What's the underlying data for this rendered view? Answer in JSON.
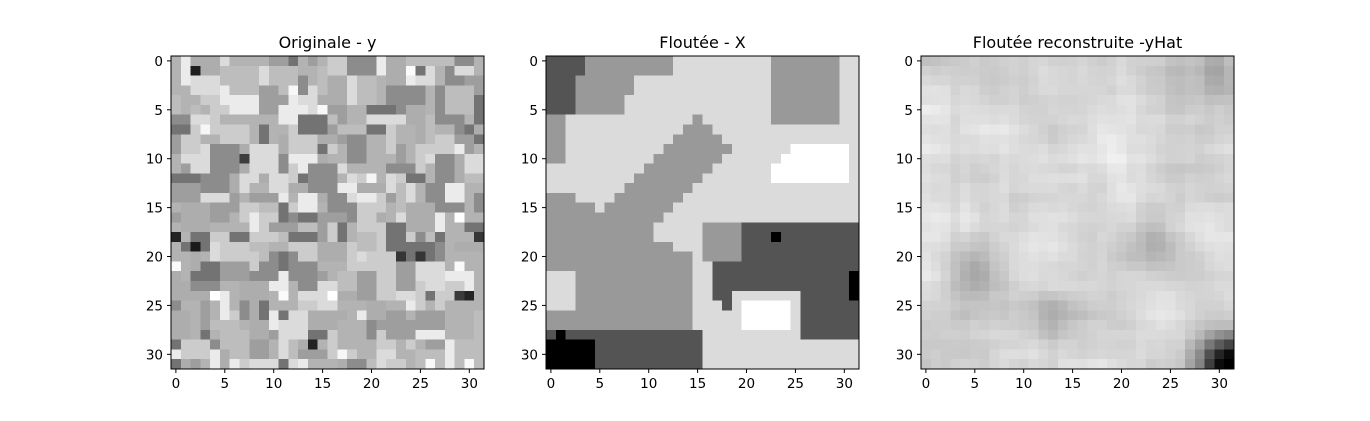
{
  "chart_data": [
    {
      "type": "heatmap",
      "title": "Originale - y",
      "colormap": "gray",
      "grid": false,
      "image_size": [
        32,
        32
      ],
      "xlim": [
        -0.5,
        31.5
      ],
      "ylim": [
        31.5,
        -0.5
      ],
      "xticks": [
        0,
        5,
        10,
        15,
        20,
        25,
        30
      ],
      "yticks": [
        0,
        5,
        10,
        15,
        20,
        25,
        30
      ],
      "xtick_labels": [
        "0",
        "5",
        "10",
        "15",
        "20",
        "25",
        "30"
      ],
      "ytick_labels": [
        "0",
        "5",
        "10",
        "15",
        "20",
        "25",
        "30"
      ],
      "pattern": "random grey blocks",
      "seed": 7
    },
    {
      "type": "heatmap",
      "title": "Floutée - X",
      "colormap": "gray",
      "grid": false,
      "image_size": [
        32,
        32
      ],
      "xlim": [
        -0.5,
        31.5
      ],
      "ylim": [
        31.5,
        -0.5
      ],
      "xticks": [
        0,
        5,
        10,
        15,
        20,
        25,
        30
      ],
      "yticks": [
        0,
        5,
        10,
        15,
        20,
        25,
        30
      ],
      "xtick_labels": [
        "0",
        "5",
        "10",
        "15",
        "20",
        "25",
        "30"
      ],
      "ytick_labels": [
        "0",
        "5",
        "10",
        "15",
        "20",
        "25",
        "30"
      ],
      "pattern": "segmented regions",
      "levels": [
        0.0,
        0.33,
        0.6,
        0.86,
        1.0
      ]
    },
    {
      "type": "heatmap",
      "title": "Floutée reconstruite -yHat",
      "colormap": "gray",
      "grid": false,
      "image_size": [
        32,
        32
      ],
      "xlim": [
        -0.5,
        31.5
      ],
      "ylim": [
        31.5,
        -0.5
      ],
      "xticks": [
        0,
        5,
        10,
        15,
        20,
        25,
        30
      ],
      "yticks": [
        0,
        5,
        10,
        15,
        20,
        25,
        30
      ],
      "xtick_labels": [
        "0",
        "5",
        "10",
        "15",
        "20",
        "25",
        "30"
      ],
      "ytick_labels": [
        "0",
        "5",
        "10",
        "15",
        "20",
        "25",
        "30"
      ],
      "pattern": "smooth light reconstruction",
      "seed": 11
    }
  ]
}
